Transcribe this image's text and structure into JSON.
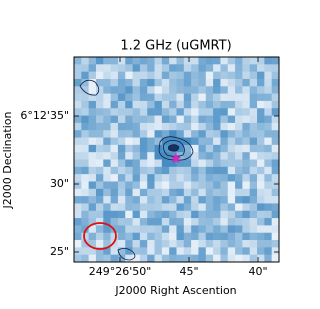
{
  "title": "1.2 GHz (uGMRT)",
  "x_axis_label": "J2000 Right Ascention",
  "y_axis_label": "J2000 Declination",
  "x_ticks": [
    "249°26'50\"",
    "45\"",
    "40\""
  ],
  "y_ticks": [
    "6°12'35\"",
    "30\"",
    "25\""
  ]
}
